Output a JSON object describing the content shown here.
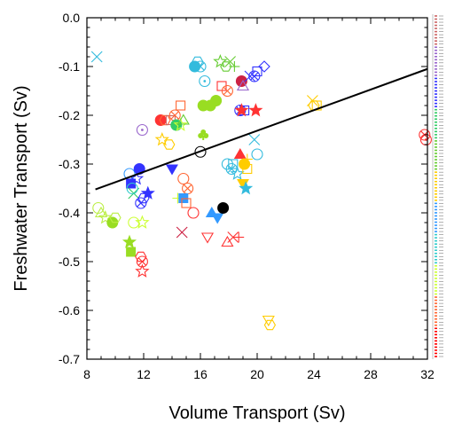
{
  "chart_data": {
    "type": "scatter",
    "title": "",
    "xlabel": "Volume Transport (Sv)",
    "ylabel": "Freshwater Transport (Sv)",
    "xlim": [
      8,
      32
    ],
    "ylim": [
      -0.7,
      0.0
    ],
    "xticks": [
      8,
      12,
      16,
      20,
      24,
      28,
      32
    ],
    "xtick_labels": [
      "8",
      "12",
      "16",
      "20",
      "24",
      "28",
      "32"
    ],
    "yticks": [
      0.0,
      -0.1,
      -0.2,
      -0.3,
      -0.4,
      -0.5,
      -0.6,
      -0.7
    ],
    "ytick_labels": [
      "0.0",
      "-0.1",
      "-0.2",
      "-0.3",
      "-0.4",
      "-0.5",
      "-0.6",
      "-0.7"
    ],
    "grid": false,
    "legend": "right (tiny color-coded list)",
    "regression_line": {
      "x": [
        8.6,
        32.0
      ],
      "y": [
        -0.352,
        -0.105
      ]
    },
    "legend_colors": [
      "#cc6666",
      "#9966cc",
      "#3333ff",
      "#33cc66",
      "#66cc33",
      "#ffcc00",
      "#3399ff",
      "#33cccc",
      "#ccff33",
      "#ff6633",
      "#ff0000"
    ],
    "points": [
      {
        "x": 8.7,
        "y": -0.08,
        "marker": "x",
        "color": "#33bbdd"
      },
      {
        "x": 8.8,
        "y": -0.39,
        "marker": "o",
        "color": "#bbee44"
      },
      {
        "x": 9.0,
        "y": -0.4,
        "marker": "tri",
        "color": "#bbee44"
      },
      {
        "x": 9.3,
        "y": -0.41,
        "marker": "star",
        "color": "#bbee44"
      },
      {
        "x": 9.8,
        "y": -0.42,
        "marker": "dot",
        "color": "#99dd22"
      },
      {
        "x": 10.0,
        "y": -0.41,
        "marker": "hex",
        "color": "#bbee44"
      },
      {
        "x": 11.0,
        "y": -0.32,
        "marker": "o",
        "color": "#3399ff"
      },
      {
        "x": 11.1,
        "y": -0.34,
        "marker": "square-filled",
        "color": "#3333ff"
      },
      {
        "x": 11.3,
        "y": -0.36,
        "marker": "x",
        "color": "#33cc66"
      },
      {
        "x": 11.5,
        "y": -0.33,
        "marker": "star",
        "color": "#3333ff"
      },
      {
        "x": 11.7,
        "y": -0.31,
        "marker": "dot",
        "color": "#3333ff"
      },
      {
        "x": 11.2,
        "y": -0.35,
        "marker": "o",
        "color": "#33cccc"
      },
      {
        "x": 11.8,
        "y": -0.38,
        "marker": "ox",
        "color": "#3333ff"
      },
      {
        "x": 12.3,
        "y": -0.36,
        "marker": "star-filled",
        "color": "#3333ff"
      },
      {
        "x": 12.0,
        "y": -0.37,
        "marker": "hex",
        "color": "#3333ff"
      },
      {
        "x": 11.3,
        "y": -0.42,
        "marker": "o",
        "color": "#ccff33"
      },
      {
        "x": 11.9,
        "y": -0.42,
        "marker": "star",
        "color": "#ccff33"
      },
      {
        "x": 11.0,
        "y": -0.46,
        "marker": "star-filled",
        "color": "#99dd22"
      },
      {
        "x": 11.1,
        "y": -0.48,
        "marker": "square-filled",
        "color": "#99dd22"
      },
      {
        "x": 11.9,
        "y": -0.5,
        "marker": "ox",
        "color": "#ff3333"
      },
      {
        "x": 11.8,
        "y": -0.49,
        "marker": "hex",
        "color": "#ff3333"
      },
      {
        "x": 11.9,
        "y": -0.52,
        "marker": "star",
        "color": "#ff3333"
      },
      {
        "x": 11.9,
        "y": -0.23,
        "marker": "odot",
        "color": "#9966cc"
      },
      {
        "x": 13.2,
        "y": -0.21,
        "marker": "dot",
        "color": "#ff3333"
      },
      {
        "x": 13.5,
        "y": -0.21,
        "marker": "hex",
        "color": "#ff6633"
      },
      {
        "x": 13.9,
        "y": -0.21,
        "marker": "square",
        "color": "#cc6666"
      },
      {
        "x": 13.3,
        "y": -0.25,
        "marker": "star",
        "color": "#ffcc00"
      },
      {
        "x": 13.8,
        "y": -0.26,
        "marker": "hex",
        "color": "#ffcc00"
      },
      {
        "x": 14.2,
        "y": -0.2,
        "marker": "ox",
        "color": "#ff6633"
      },
      {
        "x": 14.3,
        "y": -0.22,
        "marker": "dot",
        "color": "#33cc66"
      },
      {
        "x": 14.6,
        "y": -0.22,
        "marker": "star",
        "color": "#ccff33"
      },
      {
        "x": 14.8,
        "y": -0.21,
        "marker": "tri",
        "color": "#66cc33"
      },
      {
        "x": 14.6,
        "y": -0.18,
        "marker": "square",
        "color": "#ff6633"
      },
      {
        "x": 15.6,
        "y": -0.1,
        "marker": "dot",
        "color": "#33bbdd"
      },
      {
        "x": 15.8,
        "y": -0.09,
        "marker": "hex",
        "color": "#33bbdd"
      },
      {
        "x": 16.0,
        "y": -0.1,
        "marker": "ox",
        "color": "#33bbdd"
      },
      {
        "x": 16.3,
        "y": -0.13,
        "marker": "odot",
        "color": "#33bbdd"
      },
      {
        "x": 16.2,
        "y": -0.18,
        "marker": "dot",
        "color": "#99dd22"
      },
      {
        "x": 16.7,
        "y": -0.18,
        "marker": "dot",
        "color": "#99dd22"
      },
      {
        "x": 17.1,
        "y": -0.17,
        "marker": "dot",
        "color": "#99dd22"
      },
      {
        "x": 16.2,
        "y": -0.24,
        "marker": "club",
        "color": "#99dd22"
      },
      {
        "x": 17.4,
        "y": -0.09,
        "marker": "star",
        "color": "#66cc33"
      },
      {
        "x": 17.8,
        "y": -0.1,
        "marker": "hex",
        "color": "#66cc33"
      },
      {
        "x": 18.1,
        "y": -0.09,
        "marker": "x",
        "color": "#66cc33"
      },
      {
        "x": 18.4,
        "y": -0.1,
        "marker": "plus",
        "color": "#66cc33"
      },
      {
        "x": 17.5,
        "y": -0.14,
        "marker": "square",
        "color": "#ff3333"
      },
      {
        "x": 17.9,
        "y": -0.15,
        "marker": "ox",
        "color": "#ff6633"
      },
      {
        "x": 18.9,
        "y": -0.13,
        "marker": "dot",
        "color": "#cc2244"
      },
      {
        "x": 19.0,
        "y": -0.14,
        "marker": "tri",
        "color": "#9966cc"
      },
      {
        "x": 19.5,
        "y": -0.12,
        "marker": "x",
        "color": "#3333ff"
      },
      {
        "x": 19.8,
        "y": -0.12,
        "marker": "ox",
        "color": "#3333ff"
      },
      {
        "x": 20.0,
        "y": -0.11,
        "marker": "square",
        "color": "#3333ff"
      },
      {
        "x": 20.5,
        "y": -0.1,
        "marker": "diamond",
        "color": "#3333ff"
      },
      {
        "x": 18.8,
        "y": -0.19,
        "marker": "ox",
        "color": "#3333ff"
      },
      {
        "x": 19.1,
        "y": -0.19,
        "marker": "square",
        "color": "#3333ff"
      },
      {
        "x": 18.9,
        "y": -0.19,
        "marker": "star-filled",
        "color": "#ff3333"
      },
      {
        "x": 19.9,
        "y": -0.19,
        "marker": "star-filled",
        "color": "#ff3333"
      },
      {
        "x": 16.0,
        "y": -0.275,
        "marker": "o",
        "color": "#000000"
      },
      {
        "x": 14.0,
        "y": -0.31,
        "marker": "tri-down-filled",
        "color": "#3333ff"
      },
      {
        "x": 14.8,
        "y": -0.33,
        "marker": "o",
        "color": "#ff6633"
      },
      {
        "x": 15.1,
        "y": -0.35,
        "marker": "ox",
        "color": "#ff6633"
      },
      {
        "x": 14.4,
        "y": -0.37,
        "marker": "plus",
        "color": "#ccff33"
      },
      {
        "x": 14.8,
        "y": -0.37,
        "marker": "square-filled",
        "color": "#3399ff"
      },
      {
        "x": 15.0,
        "y": -0.38,
        "marker": "square",
        "color": "#ff6633"
      },
      {
        "x": 15.5,
        "y": -0.4,
        "marker": "o",
        "color": "#ff3333"
      },
      {
        "x": 14.7,
        "y": -0.44,
        "marker": "x",
        "color": "#cc2244"
      },
      {
        "x": 16.5,
        "y": -0.45,
        "marker": "tri-down",
        "color": "#ff3333"
      },
      {
        "x": 16.8,
        "y": -0.4,
        "marker": "tri-filled",
        "color": "#3399ff"
      },
      {
        "x": 17.2,
        "y": -0.41,
        "marker": "tri-down-filled",
        "color": "#3399ff"
      },
      {
        "x": 17.6,
        "y": -0.39,
        "marker": "dot",
        "color": "#000000"
      },
      {
        "x": 17.9,
        "y": -0.46,
        "marker": "tri",
        "color": "#ff3333"
      },
      {
        "x": 18.3,
        "y": -0.45,
        "marker": "x",
        "color": "#ff3333"
      },
      {
        "x": 18.7,
        "y": -0.45,
        "marker": "plus",
        "color": "#ff3333"
      },
      {
        "x": 17.9,
        "y": -0.3,
        "marker": "o",
        "color": "#33bbdd"
      },
      {
        "x": 18.2,
        "y": -0.31,
        "marker": "ox",
        "color": "#33bbdd"
      },
      {
        "x": 18.3,
        "y": -0.3,
        "marker": "square",
        "color": "#33bbdd"
      },
      {
        "x": 18.6,
        "y": -0.32,
        "marker": "star",
        "color": "#33bbdd"
      },
      {
        "x": 18.8,
        "y": -0.28,
        "marker": "tri-filled",
        "color": "#ff3333"
      },
      {
        "x": 19.3,
        "y": -0.29,
        "marker": "plus",
        "color": "#ffcc00"
      },
      {
        "x": 19.1,
        "y": -0.3,
        "marker": "dot",
        "color": "#ffcc00"
      },
      {
        "x": 19.3,
        "y": -0.31,
        "marker": "square",
        "color": "#ffcc00"
      },
      {
        "x": 19.0,
        "y": -0.34,
        "marker": "tri-down-filled",
        "color": "#ffcc00"
      },
      {
        "x": 19.2,
        "y": -0.35,
        "marker": "star-filled",
        "color": "#33bbdd"
      },
      {
        "x": 19.8,
        "y": -0.25,
        "marker": "x",
        "color": "#33bbdd"
      },
      {
        "x": 20.0,
        "y": -0.28,
        "marker": "o",
        "color": "#33bbdd"
      },
      {
        "x": 20.8,
        "y": -0.62,
        "marker": "tri-down",
        "color": "#ffcc00"
      },
      {
        "x": 20.9,
        "y": -0.63,
        "marker": "hex",
        "color": "#ffcc00"
      },
      {
        "x": 23.9,
        "y": -0.17,
        "marker": "x",
        "color": "#ffcc00"
      },
      {
        "x": 24.0,
        "y": -0.18,
        "marker": "hex",
        "color": "#ffcc00"
      },
      {
        "x": 24.2,
        "y": -0.18,
        "marker": "square",
        "color": "#ffcc00"
      },
      {
        "x": 31.8,
        "y": -0.24,
        "marker": "ox",
        "color": "#ff3333"
      },
      {
        "x": 31.9,
        "y": -0.25,
        "marker": "odot",
        "color": "#ff3333"
      }
    ]
  }
}
